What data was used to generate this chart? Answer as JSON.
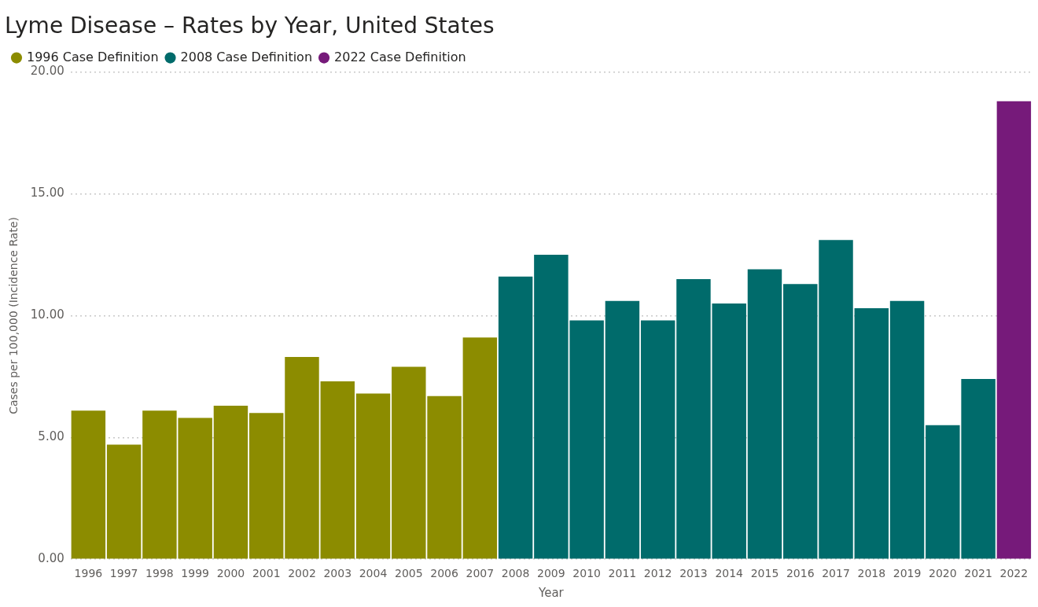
{
  "chart_data": {
    "type": "bar",
    "title": "Lyme Disease – Rates by Year, United States",
    "xlabel": "Year",
    "ylabel": "Cases per 100,000 (Incidence Rate)",
    "categories": [
      "1996",
      "1997",
      "1998",
      "1999",
      "2000",
      "2001",
      "2002",
      "2003",
      "2004",
      "2005",
      "2006",
      "2007",
      "2008",
      "2009",
      "2010",
      "2011",
      "2012",
      "2013",
      "2014",
      "2015",
      "2016",
      "2017",
      "2018",
      "2019",
      "2020",
      "2021",
      "2022"
    ],
    "series": [
      {
        "name": "1996 Case Definition",
        "color": "#8c8c00",
        "values": [
          6.1,
          4.7,
          6.1,
          5.8,
          6.3,
          6.0,
          8.3,
          7.3,
          6.8,
          7.9,
          6.7,
          9.1,
          null,
          null,
          null,
          null,
          null,
          null,
          null,
          null,
          null,
          null,
          null,
          null,
          null,
          null,
          null
        ]
      },
      {
        "name": "2008 Case Definition",
        "color": "#006b6b",
        "values": [
          null,
          null,
          null,
          null,
          null,
          null,
          null,
          null,
          null,
          null,
          null,
          null,
          11.6,
          12.5,
          9.8,
          10.6,
          9.8,
          11.5,
          10.5,
          11.9,
          11.3,
          13.1,
          10.3,
          10.6,
          5.5,
          7.4,
          null
        ]
      },
      {
        "name": "2022 Case Definition",
        "color": "#761a7a",
        "values": [
          null,
          null,
          null,
          null,
          null,
          null,
          null,
          null,
          null,
          null,
          null,
          null,
          null,
          null,
          null,
          null,
          null,
          null,
          null,
          null,
          null,
          null,
          null,
          null,
          null,
          null,
          18.8
        ]
      }
    ],
    "ylim": [
      0,
      20
    ],
    "yticks": [
      {
        "value": 0,
        "label": "0.00"
      },
      {
        "value": 5,
        "label": "5.00"
      },
      {
        "value": 10,
        "label": "10.00"
      },
      {
        "value": 15,
        "label": "15.00"
      },
      {
        "value": 20,
        "label": "20.00"
      }
    ],
    "grid": "y",
    "legend": "top left"
  }
}
